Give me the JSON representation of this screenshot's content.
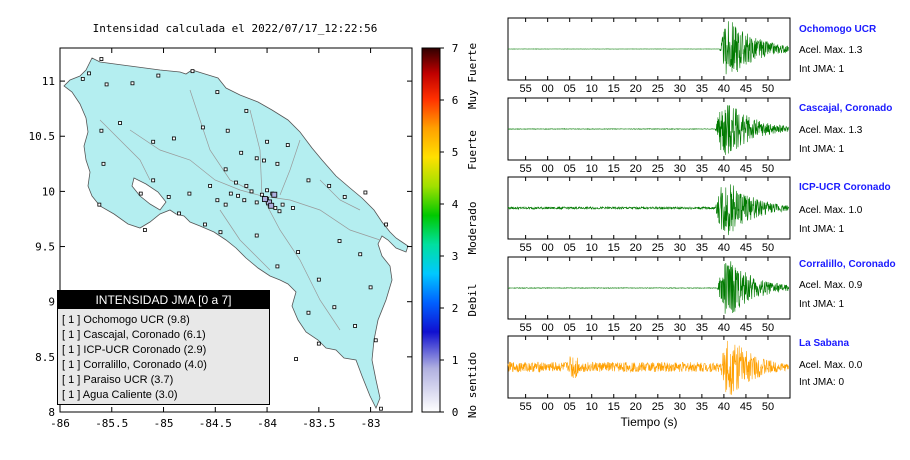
{
  "chart_data": [
    {
      "type": "scatter",
      "title": "Intensidad calculada el 2022/07/17_12:22:56",
      "xlabel": "",
      "ylabel": "",
      "xlim": [
        -86,
        -82.6
      ],
      "ylim": [
        8,
        11.3
      ],
      "x_ticks": [
        "-86",
        "-85.5",
        "-85",
        "-84.5",
        "-84",
        "-83.5",
        "-83"
      ],
      "y_ticks": [
        "8",
        "8.5",
        "9",
        "9.5",
        "10",
        "10.5",
        "11"
      ],
      "colorbar": {
        "ticks": [
          "0",
          "1",
          "2",
          "3",
          "4",
          "5",
          "6",
          "7"
        ],
        "labels": [
          "No sentido",
          "Debil",
          "Moderado",
          "Fuerte",
          "Muy Fuerte"
        ]
      },
      "legend": {
        "header": "INTENSIDAD JMA [0 a 7]",
        "entries": [
          "[ 1 ]  Ochomogo UCR (9.8)",
          "[ 1 ]  Cascajal, Coronado (6.1)",
          "[ 1 ]  ICP-UCR Coronado (2.9)",
          "[ 1 ]  Corralillo, Coronado (4.0)",
          "[ 1 ]  Paraiso UCR (3.7)",
          "[ 1 ]  Agua Caliente (3.0)"
        ]
      },
      "stations": [
        [
          -85.6,
          11.2
        ],
        [
          -85.72,
          11.07
        ],
        [
          -85.78,
          11.02
        ],
        [
          -85.55,
          10.97
        ],
        [
          -85.3,
          10.98
        ],
        [
          -85.05,
          11.05
        ],
        [
          -84.72,
          11.09
        ],
        [
          -84.48,
          10.9
        ],
        [
          -84.2,
          10.73
        ],
        [
          -84.62,
          10.58
        ],
        [
          -84.9,
          10.48
        ],
        [
          -85.1,
          10.45
        ],
        [
          -85.42,
          10.62
        ],
        [
          -85.6,
          10.55
        ],
        [
          -85.58,
          10.25
        ],
        [
          -85.62,
          9.88
        ],
        [
          -85.1,
          10.1
        ],
        [
          -85.22,
          9.98
        ],
        [
          -84.95,
          9.95
        ],
        [
          -84.75,
          9.98
        ],
        [
          -84.55,
          10.05
        ],
        [
          -84.4,
          10.2
        ],
        [
          -84.1,
          10.3
        ],
        [
          -83.9,
          10.25
        ],
        [
          -83.8,
          10.42
        ],
        [
          -83.6,
          10.1
        ],
        [
          -83.4,
          10.05
        ],
        [
          -83.05,
          9.99
        ],
        [
          -83.25,
          9.95
        ],
        [
          -84.3,
          10.08
        ],
        [
          -84.2,
          10.05
        ],
        [
          -84.15,
          10.0
        ],
        [
          -84.05,
          9.97
        ],
        [
          -84.0,
          9.93
        ],
        [
          -83.97,
          9.88
        ],
        [
          -83.92,
          9.85
        ],
        [
          -83.88,
          9.82
        ],
        [
          -84.1,
          9.9
        ],
        [
          -84.22,
          9.92
        ],
        [
          -84.28,
          9.96
        ],
        [
          -84.35,
          9.98
        ],
        [
          -84.0,
          10.01
        ],
        [
          -83.95,
          9.98
        ],
        [
          -83.85,
          9.88
        ],
        [
          -83.75,
          9.85
        ],
        [
          -84.45,
          9.63
        ],
        [
          -84.6,
          9.7
        ],
        [
          -84.85,
          9.8
        ],
        [
          -85.18,
          9.65
        ],
        [
          -84.1,
          9.6
        ],
        [
          -83.7,
          9.45
        ],
        [
          -83.9,
          9.32
        ],
        [
          -83.5,
          9.2
        ],
        [
          -83.3,
          9.55
        ],
        [
          -83.1,
          9.43
        ],
        [
          -82.85,
          9.7
        ],
        [
          -83.0,
          9.13
        ],
        [
          -83.35,
          8.95
        ],
        [
          -83.6,
          8.9
        ],
        [
          -83.15,
          8.78
        ],
        [
          -82.95,
          8.65
        ],
        [
          -83.5,
          8.62
        ],
        [
          -83.72,
          8.48
        ],
        [
          -82.9,
          8.03
        ],
        [
          -84.4,
          9.88
        ],
        [
          -84.48,
          9.92
        ],
        [
          -84.03,
          10.28
        ],
        [
          -84.25,
          10.35
        ],
        [
          -84.38,
          10.55
        ],
        [
          -84.0,
          10.45
        ]
      ],
      "highlight_stations": [
        [
          -83.98,
          9.9
        ],
        [
          -83.93,
          9.97
        ],
        [
          -84.02,
          9.93
        ],
        [
          -83.96,
          9.87
        ]
      ]
    },
    {
      "type": "line",
      "title": "",
      "xlabel": "Tiempo (s)",
      "x_ticks": [
        "55",
        "00",
        "05",
        "10",
        "15",
        "20",
        "25",
        "30",
        "35",
        "40",
        "45",
        "50"
      ],
      "series": [
        {
          "name": "Ochomogo UCR",
          "info": [
            "Acel. Max. 1.3",
            "Int JMA: 1"
          ],
          "color": "#007a00",
          "onset": 44,
          "peak": 1.0,
          "pre_noise": 0.005
        },
        {
          "name": "Cascajal, Coronado",
          "info": [
            "Acel. Max. 1.3",
            "Int JMA: 1"
          ],
          "color": "#007a00",
          "onset": 43,
          "peak": 1.0,
          "pre_noise": 0.01
        },
        {
          "name": "ICP-UCR Coronado",
          "info": [
            "Acel. Max. 1.0",
            "Int JMA: 1"
          ],
          "color": "#007a00",
          "onset": 43,
          "peak": 1.0,
          "pre_noise": 0.04
        },
        {
          "name": "Corralillo, Coronado",
          "info": [
            "Acel. Max. 0.9",
            "Int JMA: 1"
          ],
          "color": "#007a00",
          "onset": 43.5,
          "peak": 1.0,
          "pre_noise": 0.01
        },
        {
          "name": "La Sabana",
          "info": [
            "Acel. Max. 0.0",
            "Int JMA: 0"
          ],
          "color": "#ffa000",
          "onset": 44,
          "peak": 1.0,
          "pre_noise": 0.18
        }
      ]
    }
  ]
}
